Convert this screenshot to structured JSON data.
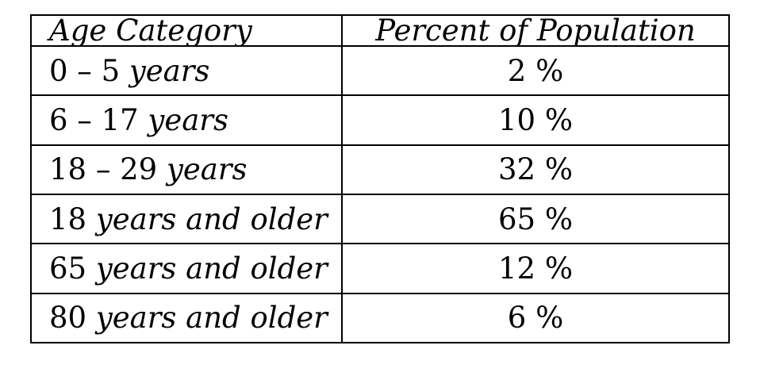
{
  "table": {
    "headers": [
      "Age Category",
      "Percent of Population"
    ],
    "rows": [
      {
        "num": "0 – 5",
        "unit": "years",
        "value": "2 %"
      },
      {
        "num": "6 – 17",
        "unit": "years",
        "value": "10 %"
      },
      {
        "num": "18 – 29",
        "unit": "years",
        "value": "32 %"
      },
      {
        "num": "18",
        "unit": "years and older",
        "value": "65 %"
      },
      {
        "num": "65",
        "unit": "years and older",
        "value": "12 %"
      },
      {
        "num": "80",
        "unit": "years and older",
        "value": "6 %"
      }
    ]
  }
}
